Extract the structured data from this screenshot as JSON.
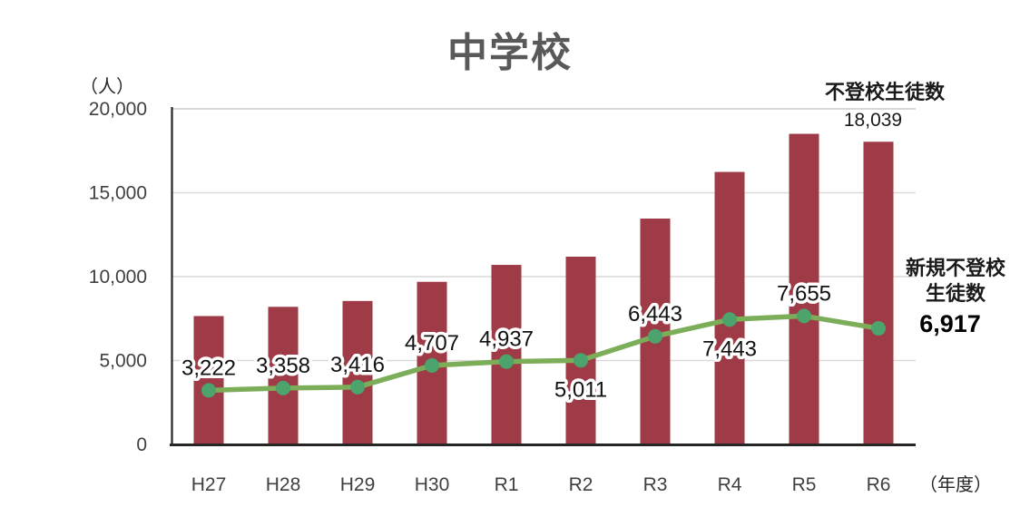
{
  "title": "中学校",
  "colors": {
    "bar": "#9E3B46",
    "line": "#7CAD58",
    "marker": "#4CA36C",
    "grid": "#D9D9D9",
    "top_border": "#C9C9C9",
    "axis": "#262626",
    "title_text": "#595959",
    "tick_text": "#404040"
  },
  "y_axis": {
    "unit_label": "（人）",
    "ticks": [
      {
        "label": "20,000",
        "value": 20000
      },
      {
        "label": "15,000",
        "value": 15000
      },
      {
        "label": "10,000",
        "value": 10000
      },
      {
        "label": "5,000",
        "value": 5000
      },
      {
        "label": "0",
        "value": 0
      }
    ]
  },
  "x_axis": {
    "unit_label": "（年度）"
  },
  "annotations": {
    "bar_series_label": "不登校生徒数",
    "bar_last_value_label": "18,039",
    "line_series_label_line1": "新規不登校",
    "line_series_label_line2": "生徒数",
    "line_last_value_label": "6,917"
  },
  "chart_data": {
    "type": "bar+line",
    "title": "中学校",
    "xlabel": "（年度）",
    "ylabel": "（人）",
    "ylim": [
      0,
      20000
    ],
    "grid": "horizontal",
    "categories": [
      "H27",
      "H28",
      "H29",
      "H30",
      "R1",
      "R2",
      "R3",
      "R4",
      "R5",
      "R6"
    ],
    "series": [
      {
        "name": "不登校生徒数",
        "type": "bar",
        "values": [
          7650,
          8200,
          8550,
          9690,
          10700,
          11190,
          13460,
          16240,
          18510,
          18039
        ],
        "labels": [
          "",
          "",
          "",
          "",
          "",
          "",
          "",
          "",
          "",
          "18,039"
        ]
      },
      {
        "name": "新規不登校生徒数",
        "type": "line",
        "values": [
          3222,
          3358,
          3416,
          4707,
          4937,
          5011,
          6443,
          7443,
          7655,
          6917
        ],
        "labels": [
          "3,222",
          "3,358",
          "3,416",
          "4,707",
          "4,937",
          "5,011",
          "6,443",
          "7,443",
          "7,655",
          ""
        ],
        "label_pos": [
          "above",
          "above",
          "above",
          "above",
          "above",
          "below",
          "above",
          "below",
          "above",
          "none"
        ]
      }
    ]
  }
}
